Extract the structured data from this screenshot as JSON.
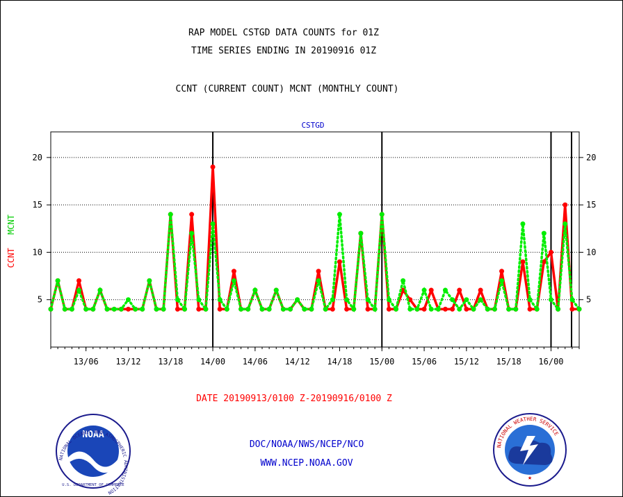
{
  "chart_data": {
    "type": "line",
    "title": "RAP MODEL CSTGD DATA COUNTS for 01Z",
    "subtitle": "TIME SERIES ENDING IN 20190916 01Z",
    "legend_line": "CCNT (CURRENT COUNT) MCNT (MONTHLY COUNT)",
    "station": "CSTGD",
    "ylabel_red": "CCNT",
    "ylabel_green": "MCNT",
    "date_range": "DATE 20190913/0100 Z-20190916/0100 Z",
    "ylim": [
      0,
      22.7
    ],
    "yticks": [
      5,
      10,
      15,
      20
    ],
    "xticks": [
      "13/06",
      "13/12",
      "13/18",
      "14/00",
      "14/06",
      "14/12",
      "14/18",
      "15/00",
      "15/06",
      "15/12",
      "15/18",
      "16/00"
    ],
    "grid": true,
    "series": [
      {
        "name": "CCNT",
        "color": "#ff0000",
        "values": [
          4,
          7,
          4,
          4,
          7,
          4,
          4,
          6,
          4,
          4,
          4,
          4,
          4,
          4,
          7,
          4,
          4,
          14,
          4,
          4,
          14,
          4,
          4,
          19,
          4,
          4,
          8,
          4,
          4,
          6,
          4,
          4,
          6,
          4,
          4,
          5,
          4,
          4,
          8,
          4,
          4,
          9,
          4,
          4,
          12,
          4,
          4,
          14,
          4,
          4,
          6,
          5,
          4,
          4,
          6,
          4,
          4,
          4,
          6,
          4,
          4,
          6,
          4,
          4,
          8,
          4,
          4,
          9,
          4,
          4,
          9,
          10,
          4,
          15,
          4,
          4
        ]
      },
      {
        "name": "MCNT",
        "color": "#00ee00",
        "values": [
          4,
          7,
          4,
          4,
          6,
          4,
          4,
          6,
          4,
          4,
          4,
          5,
          4,
          4,
          7,
          4,
          4,
          14,
          5,
          4,
          12,
          5,
          4,
          13,
          5,
          4,
          7,
          4,
          4,
          6,
          4,
          4,
          6,
          4,
          4,
          5,
          4,
          4,
          7,
          4,
          5,
          14,
          5,
          4,
          12,
          5,
          4,
          14,
          5,
          4,
          7,
          4,
          4,
          6,
          4,
          4,
          6,
          5,
          4,
          5,
          4,
          5,
          4,
          4,
          7,
          4,
          4,
          13,
          5,
          4,
          12,
          5,
          4,
          13,
          5,
          4
        ]
      }
    ]
  },
  "footer": {
    "org_line": "DOC/NOAA/NWS/NCEP/NCO",
    "url_line": "WWW.NCEP.NOAA.GOV"
  },
  "logos": {
    "noaa_text": "NOAA",
    "noaa_ring": "NATIONAL OCEANIC AND ATMOSPHERIC ADMINISTRATION",
    "noaa_ring_bottom": "U.S. DEPARTMENT OF COMMERCE",
    "nws_ring": "NATIONAL WEATHER SERVICE"
  }
}
